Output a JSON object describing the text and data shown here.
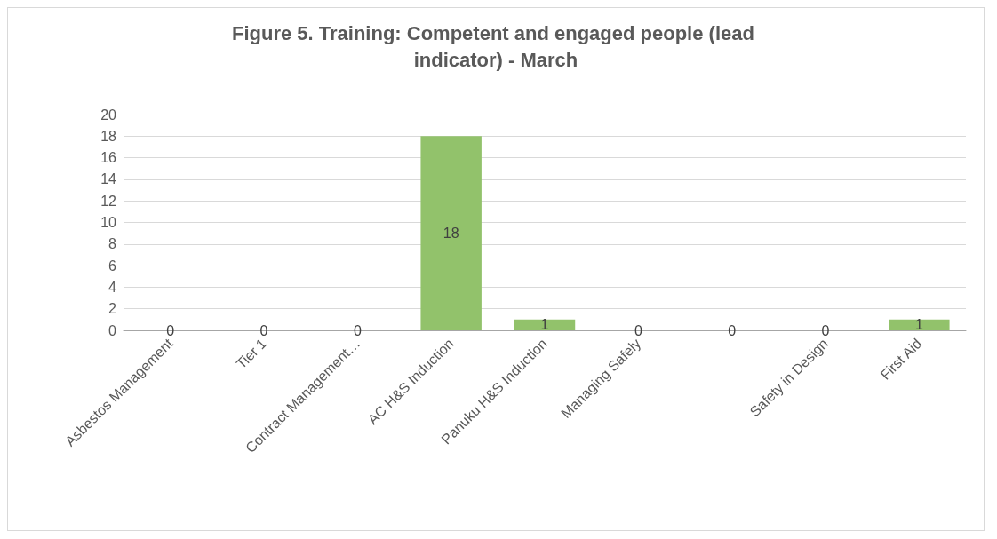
{
  "chart_data": {
    "type": "bar",
    "title": "Figure 5. Training: Competent and engaged people (lead indicator) - March",
    "categories": [
      "Asbestos Management",
      "Tier 1",
      "Contract Management…",
      "AC H&S Induction",
      "Panuku H&S Induction",
      "Managing Safely",
      null,
      "Safety in Design",
      "First Aid"
    ],
    "values": [
      0,
      0,
      0,
      18,
      1,
      0,
      0,
      0,
      1
    ],
    "color": "#92c26b",
    "ylim": [
      0,
      20
    ],
    "yticks": [
      0,
      2,
      4,
      6,
      8,
      10,
      12,
      14,
      16,
      18,
      20
    ],
    "grid": "y",
    "data_labels": true
  }
}
